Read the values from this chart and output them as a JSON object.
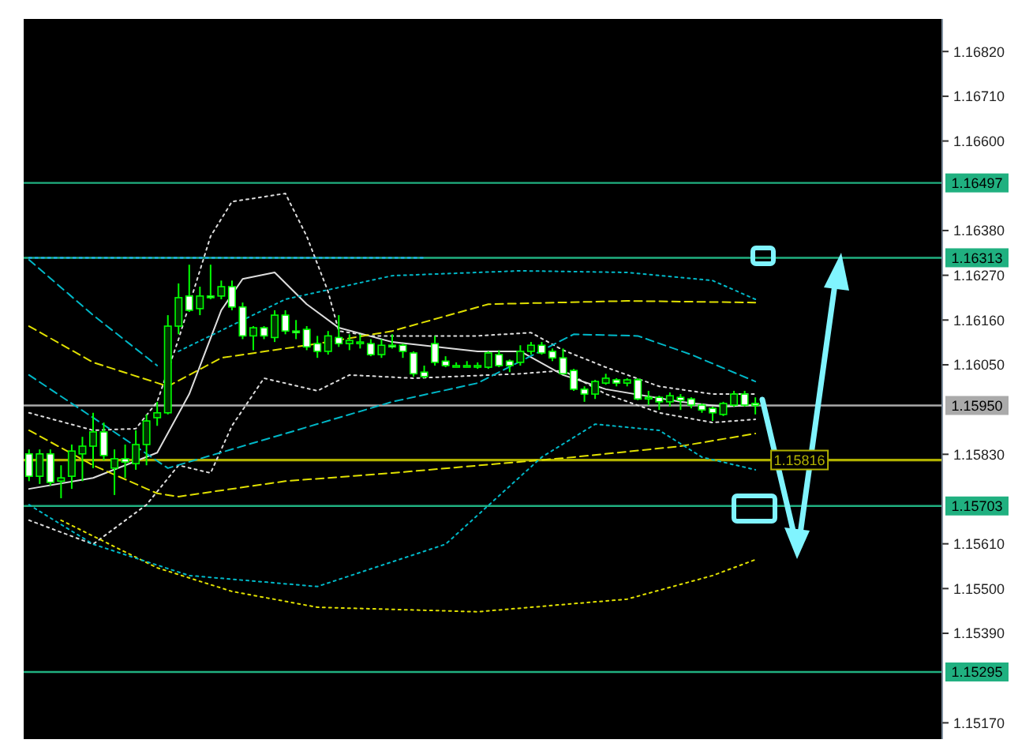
{
  "chart_data": {
    "type": "candlestick",
    "color": "#00ff00",
    "categories": [
      null,
      null,
      null,
      null,
      null,
      null,
      null,
      null,
      null,
      null,
      null,
      null,
      null,
      null,
      null,
      null,
      null,
      null,
      null,
      null,
      null,
      null,
      null,
      null,
      null,
      null,
      null,
      null,
      null,
      null,
      null,
      null,
      null,
      null,
      null,
      null,
      null,
      null,
      null,
      null,
      null,
      null,
      null,
      null,
      null,
      null,
      null,
      null,
      null,
      null,
      null,
      null,
      null,
      null,
      null,
      null,
      null,
      null,
      null,
      null,
      null,
      null,
      null,
      null,
      null,
      null,
      null,
      null,
      null,
      null,
      null,
      null,
      null,
      null,
      null,
      null,
      null,
      null,
      null,
      null,
      null,
      null,
      null,
      null,
      null,
      null
    ],
    "ohlc": [
      [
        1.15831,
        1.15842,
        1.15764,
        1.15776
      ],
      [
        1.15776,
        1.15842,
        1.15757,
        1.15831
      ],
      [
        1.15831,
        1.15842,
        1.15753,
        1.15761
      ],
      [
        1.15764,
        1.15803,
        1.15722,
        1.15772
      ],
      [
        1.15776,
        1.15854,
        1.15745,
        1.15838
      ],
      [
        1.15831,
        1.15873,
        1.15764,
        1.1585
      ],
      [
        1.1585,
        1.15932,
        1.15796,
        1.15885
      ],
      [
        1.15885,
        1.15908,
        1.15815,
        1.15827
      ],
      [
        1.15796,
        1.15842,
        1.1573,
        1.15819
      ],
      [
        1.15819,
        1.15854,
        1.15772,
        1.15811
      ],
      [
        1.15807,
        1.15889,
        1.15792,
        1.15854
      ],
      [
        1.15854,
        1.15928,
        1.15803,
        1.15912
      ],
      [
        1.1592,
        1.15959,
        1.159,
        1.15932
      ],
      [
        1.15932,
        1.16172,
        1.15928,
        1.16145
      ],
      [
        1.16145,
        1.1625,
        1.16125,
        1.16215
      ],
      [
        1.16219,
        1.16296,
        1.1618,
        1.16184
      ],
      [
        1.16188,
        1.16242,
        1.16172,
        1.16219
      ],
      [
        1.16219,
        1.16296,
        1.16211,
        1.16215
      ],
      [
        1.16219,
        1.16257,
        1.16211,
        1.16242
      ],
      [
        1.16242,
        1.16257,
        1.16184,
        1.16192
      ],
      [
        1.16192,
        1.16203,
        1.16113,
        1.16121
      ],
      [
        1.16121,
        1.16145,
        1.16086,
        1.16141
      ],
      [
        1.16141,
        1.16145,
        1.16113,
        1.16121
      ],
      [
        1.16117,
        1.16184,
        1.16106,
        1.16172
      ],
      [
        1.16172,
        1.16184,
        1.16125,
        1.16133
      ],
      [
        1.16133,
        1.1616,
        1.16113,
        1.16129
      ],
      [
        1.16137,
        1.16145,
        1.16086,
        1.16094
      ],
      [
        1.16102,
        1.16121,
        1.16067,
        1.16083
      ],
      [
        1.16083,
        1.16133,
        1.16075,
        1.16121
      ],
      [
        1.16117,
        1.16172,
        1.16094,
        1.16102
      ],
      [
        1.16102,
        1.16125,
        1.16086,
        1.1611
      ],
      [
        1.16106,
        1.16125,
        1.1609,
        1.16106
      ],
      [
        1.16102,
        1.16113,
        1.16071,
        1.16075
      ],
      [
        1.16075,
        1.16113,
        1.16067,
        1.16098
      ],
      [
        1.16098,
        1.16125,
        1.1609,
        1.16094
      ],
      [
        1.16098,
        1.16102,
        1.16067,
        1.16083
      ],
      [
        1.16079,
        1.16083,
        1.16021,
        1.16028
      ],
      [
        1.16032,
        1.16048,
        1.16017,
        1.16021
      ],
      [
        1.16102,
        1.16121,
        1.16048,
        1.16056
      ],
      [
        1.16059,
        1.16071,
        1.16044,
        1.16048
      ],
      [
        1.16048,
        1.16056,
        1.16044,
        1.16048
      ],
      [
        1.16048,
        1.16059,
        1.16044,
        1.16048
      ],
      [
        1.16048,
        1.16056,
        1.1604,
        1.16048
      ],
      [
        1.16044,
        1.16083,
        1.1604,
        1.16079
      ],
      [
        1.16075,
        1.16086,
        1.16044,
        1.16048
      ],
      [
        1.16059,
        1.16063,
        1.16032,
        1.16048
      ],
      [
        1.16056,
        1.16098,
        1.16048,
        1.16083
      ],
      [
        1.16083,
        1.16106,
        1.16075,
        1.16098
      ],
      [
        1.16098,
        1.16106,
        1.16075,
        1.16079
      ],
      [
        1.16083,
        1.1609,
        1.16059,
        1.16067
      ],
      [
        1.16067,
        1.1609,
        1.16028,
        1.16028
      ],
      [
        1.16036,
        1.1604,
        1.15986,
        1.1599
      ],
      [
        1.1599,
        1.15997,
        1.15959,
        1.15978
      ],
      [
        1.15978,
        1.16013,
        1.15966,
        1.16009
      ],
      [
        1.16005,
        1.16028,
        1.16001,
        1.16017
      ],
      [
        1.16013,
        1.16017,
        1.15997,
        1.16005
      ],
      [
        1.16005,
        1.16017,
        1.15997,
        1.16013
      ],
      [
        1.16013,
        1.16017,
        1.15963,
        1.15966
      ],
      [
        1.1597,
        1.15986,
        1.15951,
        1.1597
      ],
      [
        1.1597,
        1.15974,
        1.15939,
        1.15959
      ],
      [
        1.15959,
        1.15982,
        1.15947,
        1.15974
      ],
      [
        1.1597,
        1.15978,
        1.15939,
        1.15963
      ],
      [
        1.15966,
        1.1597,
        1.15943,
        1.15951
      ],
      [
        1.15951,
        1.15955,
        1.15932,
        1.15939
      ],
      [
        1.15943,
        1.15947,
        1.15912,
        1.15932
      ],
      [
        1.15928,
        1.15959,
        1.15924,
        1.15955
      ],
      [
        1.15951,
        1.15986,
        1.15947,
        1.15978
      ],
      [
        1.15978,
        1.15986,
        1.15947,
        1.15951
      ],
      [
        1.15955,
        1.1597,
        1.15928,
        1.1595
      ],
      null,
      null,
      null,
      null,
      null,
      null,
      null,
      null,
      null,
      null,
      null,
      null,
      null,
      null,
      null,
      null,
      null
    ],
    "series": [
      {
        "type": "line",
        "color": "#dddddd",
        "line_style": "dotted",
        "values": [
          1.15932,
          null,
          null,
          null,
          null,
          null,
          1.15889,
          null,
          null,
          null,
          1.15893,
          null,
          1.15959,
          null,
          1.16113,
          null,
          null,
          1.16366,
          null,
          1.16451,
          null,
          null,
          null,
          null,
          1.16471,
          null,
          1.16366,
          null,
          1.1623,
          1.16133,
          null,
          null,
          1.16121,
          null,
          null,
          null,
          null,
          null,
          null,
          null,
          null,
          null,
          1.16121,
          null,
          null,
          null,
          null,
          1.16129,
          null,
          null,
          1.16086,
          null,
          null,
          null,
          1.16044,
          null,
          null,
          null,
          null,
          1.15997,
          null,
          null,
          null,
          null,
          1.15978,
          null,
          null,
          null,
          1.15978,
          null,
          null,
          null,
          null,
          null,
          null,
          null,
          null,
          null,
          null,
          null,
          null,
          null,
          null,
          null,
          null,
          null
        ]
      },
      {
        "type": "line",
        "color": "#dddddd",
        "line_style": "solid",
        "values": [
          1.15745,
          null,
          null,
          null,
          null,
          null,
          1.15772,
          null,
          null,
          null,
          null,
          null,
          1.15834,
          null,
          null,
          1.15978,
          null,
          null,
          1.16184,
          null,
          1.16261,
          null,
          null,
          1.16277,
          null,
          null,
          1.16199,
          null,
          null,
          1.16141,
          null,
          null,
          null,
          null,
          1.16106,
          null,
          null,
          null,
          null,
          null,
          null,
          null,
          1.16083,
          null,
          null,
          null,
          1.16083,
          null,
          null,
          null,
          1.16025,
          null,
          null,
          null,
          1.1599,
          null,
          null,
          null,
          null,
          null,
          null,
          1.15959,
          null,
          null,
          null,
          1.15947,
          null,
          null,
          1.15951,
          null,
          null,
          null,
          null,
          null,
          null,
          null,
          null,
          null,
          null,
          null,
          null,
          null,
          null,
          null,
          null,
          null
        ]
      },
      {
        "type": "line",
        "color": "#dddddd",
        "line_style": "dotted",
        "values": [
          1.15668,
          null,
          null,
          null,
          null,
          null,
          1.15609,
          null,
          null,
          null,
          null,
          1.15706,
          null,
          null,
          1.15803,
          null,
          null,
          1.15784,
          null,
          1.159,
          null,
          null,
          1.16017,
          null,
          null,
          null,
          null,
          1.15986,
          null,
          null,
          1.16025,
          null,
          null,
          null,
          null,
          null,
          1.16017,
          null,
          null,
          null,
          null,
          null,
          null,
          null,
          null,
          null,
          1.16028,
          null,
          null,
          null,
          1.16036,
          null,
          null,
          null,
          1.15978,
          null,
          null,
          null,
          null,
          1.15932,
          null,
          null,
          null,
          null,
          1.15908,
          null,
          null,
          null,
          1.15916,
          null,
          null,
          null,
          null,
          null,
          null,
          null,
          null,
          null,
          null,
          null,
          null,
          null,
          null,
          null,
          null,
          null
        ]
      },
      {
        "type": "line",
        "color": "#e0e000",
        "line_style": "dashed",
        "values": [
          1.16145,
          null,
          null,
          null,
          null,
          null,
          1.16056,
          null,
          null,
          null,
          null,
          null,
          null,
          1.15997,
          null,
          null,
          null,
          null,
          1.16067,
          null,
          null,
          null,
          null,
          null,
          null,
          null,
          null,
          1.16102,
          null,
          null,
          null,
          null,
          null,
          null,
          1.16133,
          null,
          null,
          null,
          null,
          null,
          null,
          null,
          null,
          1.16199,
          null,
          null,
          null,
          null,
          null,
          null,
          null,
          null,
          null,
          null,
          null,
          null,
          1.16207,
          null,
          null,
          null,
          null,
          null,
          null,
          null,
          null,
          null,
          null,
          null,
          1.16203,
          null,
          null,
          null,
          null,
          null,
          null,
          null,
          null,
          null,
          null,
          null,
          null,
          null,
          null,
          null,
          null,
          null
        ]
      },
      {
        "type": "line",
        "color": "#e0e000",
        "line_style": "dashed",
        "values": [
          1.15889,
          null,
          null,
          null,
          null,
          null,
          1.15803,
          null,
          null,
          null,
          null,
          null,
          1.15734,
          null,
          1.15726,
          null,
          null,
          null,
          null,
          null,
          null,
          null,
          null,
          null,
          1.15764,
          null,
          null,
          null,
          null,
          null,
          null,
          null,
          null,
          null,
          1.15784,
          null,
          null,
          null,
          null,
          null,
          null,
          null,
          null,
          null,
          null,
          null,
          null,
          null,
          null,
          null,
          null,
          1.15823,
          null,
          null,
          null,
          null,
          null,
          null,
          null,
          null,
          null,
          1.1585,
          null,
          null,
          null,
          null,
          null,
          null,
          1.15881,
          null,
          null,
          null,
          null,
          null,
          null,
          null,
          null,
          null,
          null,
          null,
          null,
          null,
          null,
          null,
          null,
          null
        ]
      },
      {
        "type": "line",
        "color": "#e0e000",
        "line_style": "dotted",
        "values": [
          null,
          null,
          null,
          1.15668,
          null,
          null,
          null,
          null,
          null,
          null,
          null,
          null,
          1.15551,
          null,
          null,
          null,
          null,
          null,
          null,
          1.15493,
          null,
          null,
          null,
          null,
          null,
          null,
          null,
          1.15454,
          null,
          null,
          null,
          null,
          null,
          null,
          null,
          null,
          null,
          null,
          null,
          null,
          null,
          null,
          1.15443,
          null,
          null,
          null,
          null,
          null,
          null,
          null,
          null,
          null,
          null,
          null,
          null,
          null,
          1.15474,
          null,
          null,
          null,
          null,
          null,
          null,
          null,
          1.15532,
          null,
          null,
          null,
          1.15571,
          null,
          null,
          null,
          null,
          null,
          null,
          null,
          null,
          null,
          null,
          null,
          null,
          null,
          null,
          null,
          null,
          null
        ]
      },
      {
        "type": "line",
        "color": "#00b8c8",
        "line_style": "dashed",
        "values": [
          1.16308,
          null,
          null,
          null,
          null,
          null,
          1.16172,
          null,
          null,
          null,
          null,
          null,
          1.16048,
          null,
          null,
          null,
          null,
          null,
          null,
          null,
          null,
          null,
          null,
          null,
          null,
          null,
          null,
          null,
          null,
          null,
          null,
          null,
          null,
          null,
          null,
          null,
          null,
          null,
          null,
          null,
          null,
          null,
          null,
          null,
          null,
          null,
          null,
          null,
          null,
          null,
          null,
          null,
          null,
          null,
          null,
          null,
          null,
          null,
          null,
          null,
          null,
          null,
          null,
          null,
          null,
          null,
          null,
          null,
          null,
          null,
          null,
          null,
          null,
          null,
          null,
          null,
          null,
          null,
          null,
          null,
          null,
          null,
          null,
          null,
          null,
          null
        ]
      },
      {
        "type": "line",
        "color": "#00b8c8",
        "line_style": "dotted",
        "values": [
          null,
          null,
          null,
          null,
          null,
          null,
          null,
          null,
          null,
          null,
          null,
          null,
          null,
          null,
          1.16083,
          null,
          null,
          null,
          null,
          null,
          null,
          null,
          null,
          null,
          1.16211,
          null,
          null,
          null,
          null,
          null,
          null,
          null,
          null,
          null,
          1.16269,
          null,
          null,
          null,
          null,
          null,
          null,
          null,
          null,
          null,
          null,
          null,
          1.16281,
          null,
          null,
          null,
          null,
          null,
          null,
          null,
          null,
          null,
          1.16277,
          null,
          null,
          null,
          null,
          null,
          null,
          null,
          1.16257,
          null,
          null,
          null,
          1.16211,
          null,
          null,
          null,
          null,
          null,
          null,
          null,
          null,
          null,
          null,
          null,
          null,
          null,
          null,
          null,
          null,
          null
        ]
      },
      {
        "type": "line",
        "color": "#00b8c8",
        "line_style": "dashed",
        "values": [
          1.16025,
          null,
          null,
          null,
          null,
          null,
          1.1592,
          null,
          null,
          null,
          null,
          null,
          null,
          1.15796,
          null,
          null,
          null,
          null,
          null,
          null,
          null,
          null,
          null,
          null,
          1.15881,
          null,
          null,
          null,
          null,
          null,
          null,
          null,
          null,
          null,
          1.15959,
          null,
          null,
          null,
          null,
          null,
          null,
          null,
          1.16005,
          null,
          null,
          null,
          null,
          null,
          null,
          null,
          null,
          1.16125,
          null,
          null,
          null,
          null,
          null,
          1.16121,
          null,
          null,
          null,
          null,
          1.16075,
          null,
          null,
          null,
          null,
          null,
          1.16009,
          null,
          null,
          null,
          null,
          null,
          null,
          null,
          null,
          null,
          null,
          null,
          null,
          null,
          null,
          null,
          null,
          null
        ]
      },
      {
        "type": "line",
        "color": "#00b8c8",
        "line_style": "dotted",
        "values": [
          1.15706,
          null,
          null,
          null,
          null,
          null,
          1.15609,
          null,
          null,
          null,
          null,
          null,
          null,
          null,
          null,
          1.15532,
          null,
          null,
          null,
          null,
          null,
          null,
          null,
          null,
          null,
          null,
          null,
          1.15505,
          null,
          null,
          null,
          null,
          null,
          null,
          null,
          null,
          null,
          null,
          null,
          1.15609,
          null,
          null,
          null,
          null,
          null,
          null,
          null,
          null,
          1.15823,
          null,
          null,
          null,
          null,
          1.15904,
          null,
          null,
          null,
          null,
          null,
          1.15889,
          null,
          null,
          null,
          1.15823,
          null,
          null,
          null,
          null,
          1.15792,
          null,
          null,
          null,
          null,
          null,
          null,
          null,
          null,
          null,
          null,
          null,
          null,
          null,
          null,
          null,
          null,
          null
        ]
      },
      {
        "type": "line",
        "color": "#20b0ff",
        "line_style": "dotted",
        "values": [
          1.16313,
          null,
          null,
          null,
          null,
          null,
          null,
          null,
          null,
          null,
          null,
          null,
          null,
          null,
          null,
          null,
          null,
          null,
          null,
          null,
          null,
          null,
          null,
          null,
          null,
          null,
          null,
          null,
          null,
          null,
          null,
          null,
          null,
          null,
          null,
          null,
          null,
          1.16313,
          null,
          null,
          null,
          null,
          null,
          null,
          null,
          null,
          null,
          null,
          null,
          null,
          null,
          null,
          null,
          null,
          null,
          null,
          null,
          null,
          null,
          null,
          null,
          null,
          null,
          null,
          null,
          null,
          null,
          null,
          null,
          null,
          null,
          null,
          null,
          null,
          null,
          null,
          null,
          null,
          null,
          null,
          null,
          null,
          null,
          null,
          null,
          null
        ]
      }
    ],
    "ref_lines": [
      {
        "axis": "y",
        "value": 1.16497,
        "label": "1.16497",
        "color": "#20b080"
      },
      {
        "axis": "y",
        "value": 1.16313,
        "label": "1.16313",
        "color": "#20b080"
      },
      {
        "axis": "y",
        "value": 1.1595,
        "label": "1.15950",
        "color": "#aaaaaa"
      },
      {
        "axis": "y",
        "value": 1.15816,
        "label": "1.15816",
        "color": "#b0b000"
      },
      {
        "axis": "y",
        "value": 1.15703,
        "label": "1.15703",
        "color": "#20b080"
      },
      {
        "axis": "y",
        "value": 1.15295,
        "label": "1.15295",
        "color": "#20b080"
      }
    ],
    "ylim": [
      1.1513,
      1.169
    ],
    "yticks": [
      {
        "value": 1.1682,
        "label": "1.16820"
      },
      {
        "value": 1.1671,
        "label": "1.16710"
      },
      {
        "value": 1.166,
        "label": "1.16600"
      },
      {
        "value": 1.1638,
        "label": "1.16380"
      },
      {
        "value": 1.1627,
        "label": "1.16270"
      },
      {
        "value": 1.1616,
        "label": "1.16160"
      },
      {
        "value": 1.1605,
        "label": "1.16050"
      },
      {
        "value": 1.1583,
        "label": "1.15830"
      },
      {
        "value": 1.1561,
        "label": "1.15610"
      },
      {
        "value": 1.155,
        "label": "1.15500"
      },
      {
        "value": 1.1539,
        "label": "1.15390"
      },
      {
        "value": 1.1517,
        "label": "1.15170"
      }
    ],
    "tick_labels": "y"
  }
}
